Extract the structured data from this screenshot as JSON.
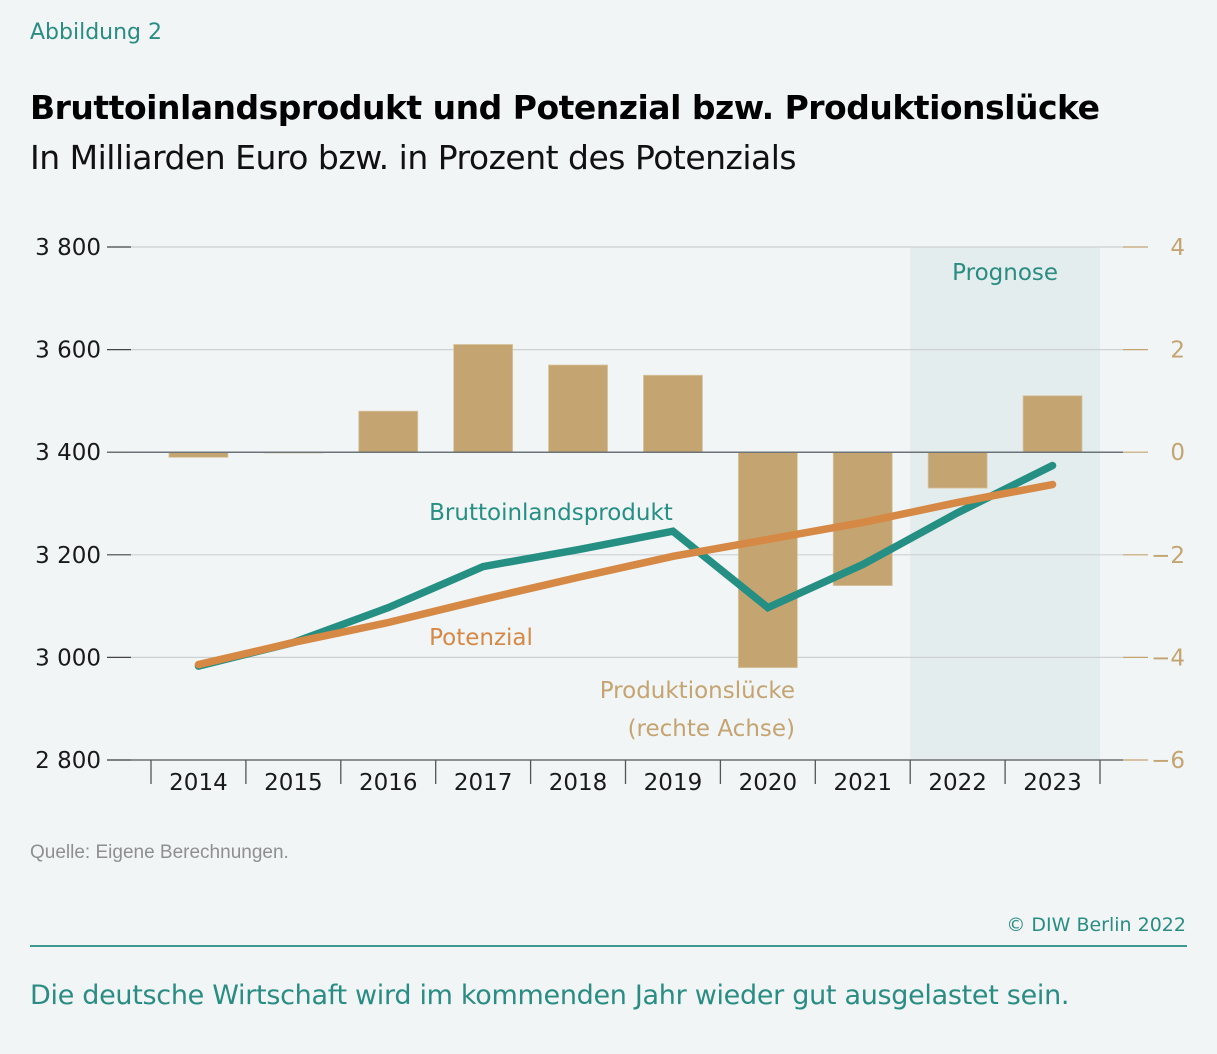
{
  "header": {
    "figure_label": "Abbildung 2",
    "title": "Bruttoinlandsprodukt und Potenzial bzw. Produktionslücke",
    "subtitle": "In Milliarden Euro bzw. in Prozent des Potenzials"
  },
  "footer": {
    "source": "Quelle: Eigene Berechnungen.",
    "copyright": "© DIW Berlin 2022",
    "caption": "Die deutsche Wirtschaft wird im kommenden Jahr wieder gut ausgelastet sein."
  },
  "colors": {
    "background": "#F1F5F6",
    "bip": "#268F84",
    "potenzial": "#D68845",
    "gap_bar": "#C4A471",
    "prognose_band": "#E4EDED",
    "accent": "#2A8C82"
  },
  "chart_data": {
    "type": "bar+line",
    "title": "Bruttoinlandsprodukt und Potenzial bzw. Produktionslücke",
    "subtitle": "In Milliarden Euro bzw. in Prozent des Potenzials",
    "categories": [
      "2014",
      "2015",
      "2016",
      "2017",
      "2018",
      "2019",
      "2020",
      "2021",
      "2022",
      "2023"
    ],
    "y_left": {
      "label": "Milliarden Euro",
      "range": [
        2800,
        3800
      ],
      "ticks": [
        2800,
        3000,
        3200,
        3400,
        3600,
        3800
      ],
      "tick_labels": [
        "2 800",
        "3 000",
        "3 200",
        "3 400",
        "3 600",
        "3 800"
      ]
    },
    "y_right": {
      "label": "Prozent des Potenzials",
      "range": [
        -6,
        4
      ],
      "ticks": [
        -6,
        -4,
        -2,
        0,
        2,
        4
      ],
      "tick_labels": [
        "−6",
        "−4",
        "−2",
        "0",
        "2",
        "4"
      ]
    },
    "series": [
      {
        "name": "Bruttoinlandsprodukt",
        "type": "line",
        "axis": "left",
        "values": [
          2983,
          3029,
          3097,
          3177,
          3210,
          3246,
          3097,
          3181,
          3282,
          3374
        ]
      },
      {
        "name": "Potenzial",
        "type": "line",
        "axis": "left",
        "values": [
          2986,
          3029,
          3068,
          3113,
          3156,
          3197,
          3230,
          3263,
          3302,
          3337
        ]
      },
      {
        "name": "Produktionslücke (rechte Achse)",
        "type": "bar",
        "axis": "right",
        "values": [
          -0.1,
          0.0,
          0.8,
          2.1,
          1.7,
          1.5,
          -4.2,
          -2.6,
          -0.7,
          1.1
        ]
      }
    ],
    "annotations": {
      "prognose": {
        "label": "Prognose",
        "from": "2022",
        "to": "2023"
      },
      "bip_label": "Bruttoinlandsprodukt",
      "potenzial_label": "Potenzial",
      "gap_label_line1": "Produktionslücke",
      "gap_label_line2": "(rechte Achse)"
    },
    "grid": true,
    "legend": "inline labels"
  }
}
